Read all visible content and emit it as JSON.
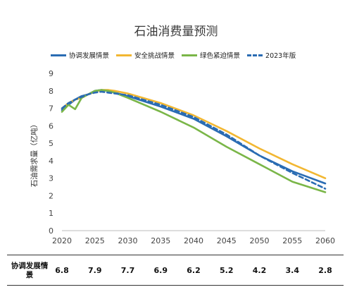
{
  "chart_data": {
    "type": "line",
    "title": "石油消费量预测",
    "ylabel": "石油需求量（亿吨）",
    "xlabel": "",
    "ylim": [
      0,
      9
    ],
    "xlim": [
      2020,
      2060
    ],
    "yticks": [
      0,
      1,
      2,
      3,
      4,
      5,
      6,
      7,
      8,
      9
    ],
    "xticks": [
      2020,
      2025,
      2030,
      2035,
      2040,
      2045,
      2050,
      2055,
      2060
    ],
    "grid": false,
    "legend_position": "top",
    "series": [
      {
        "name": "协调发展情景",
        "color": "#2a6cb3",
        "style": "solid",
        "x": [
          2020,
          2021,
          2022,
          2023,
          2024,
          2025,
          2026,
          2027,
          2028,
          2030,
          2035,
          2040,
          2045,
          2050,
          2055,
          2060
        ],
        "y": [
          6.9,
          7.2,
          7.5,
          7.7,
          7.8,
          8.0,
          8.05,
          8.0,
          7.9,
          7.7,
          7.1,
          6.4,
          5.4,
          4.3,
          3.4,
          2.7
        ]
      },
      {
        "name": "安全挑战情景",
        "color": "#f2b732",
        "style": "solid",
        "x": [
          2020,
          2021,
          2022,
          2023,
          2024,
          2025,
          2026,
          2027,
          2028,
          2030,
          2035,
          2040,
          2045,
          2050,
          2055,
          2060
        ],
        "y": [
          7.0,
          7.3,
          7.5,
          7.6,
          7.8,
          7.95,
          8.05,
          8.05,
          8.0,
          7.85,
          7.3,
          6.6,
          5.7,
          4.7,
          3.8,
          3.0
        ]
      },
      {
        "name": "绿色紧迫情景",
        "color": "#7ab648",
        "style": "solid",
        "x": [
          2020,
          2021,
          2022,
          2023,
          2024,
          2025,
          2026,
          2027,
          2028,
          2030,
          2035,
          2040,
          2045,
          2050,
          2055,
          2060
        ],
        "y": [
          6.8,
          7.2,
          6.95,
          7.6,
          7.8,
          8.0,
          8.05,
          8.0,
          7.9,
          7.6,
          6.8,
          5.9,
          4.8,
          3.8,
          2.8,
          2.2
        ]
      },
      {
        "name": "2023年版",
        "color": "#2a6cb3",
        "style": "dashed",
        "x": [
          2020,
          2021,
          2022,
          2023,
          2024,
          2025,
          2026,
          2027,
          2028,
          2030,
          2035,
          2040,
          2045,
          2050,
          2055,
          2060
        ],
        "y": [
          7.0,
          7.3,
          7.5,
          7.65,
          7.8,
          7.9,
          7.95,
          7.9,
          7.85,
          7.75,
          7.2,
          6.5,
          5.5,
          4.3,
          3.3,
          2.4
        ]
      }
    ],
    "table": {
      "row_label": "协调发展情景",
      "values": [
        "6.8",
        "7.9",
        "7.7",
        "6.9",
        "6.2",
        "5.2",
        "4.2",
        "3.4",
        "2.8"
      ]
    }
  }
}
